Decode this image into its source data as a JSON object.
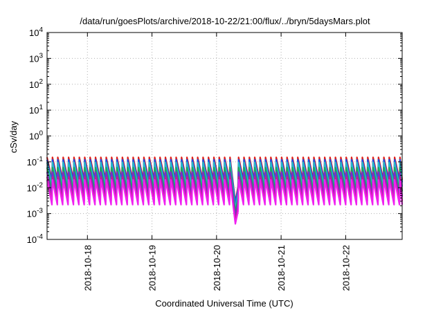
{
  "chart_data": {
    "type": "line",
    "title": "/data/run/goesPlots/archive/2018-10-22/21:00/flux/../bryn/5daysMars.plot",
    "xlabel": "Coordinated Universal Time (UTC)",
    "ylabel": "cSv/day",
    "xlim": [
      "2018-10-17 09:00",
      "2018-10-22 21:00"
    ],
    "x_ticks": [
      "2018-10-18",
      "2018-10-19",
      "2018-10-20",
      "2018-10-21",
      "2018-10-22"
    ],
    "yscale": "log",
    "ylim": [
      0.0001,
      10000
    ],
    "y_ticks": [
      {
        "value": 0.0001,
        "base": "10",
        "exp": "-4"
      },
      {
        "value": 0.001,
        "base": "10",
        "exp": "-3"
      },
      {
        "value": 0.01,
        "base": "10",
        "exp": "-2"
      },
      {
        "value": 0.1,
        "base": "10",
        "exp": "-1"
      },
      {
        "value": 1,
        "base": "10",
        "exp": "0"
      },
      {
        "value": 10,
        "base": "10",
        "exp": "1"
      },
      {
        "value": 100,
        "base": "10",
        "exp": "2"
      },
      {
        "value": 1000,
        "base": "10",
        "exp": "3"
      },
      {
        "value": 10000,
        "base": "10",
        "exp": "4"
      }
    ],
    "grid": true,
    "legend": "none",
    "sawtooth_period_hours": 2,
    "dip": {
      "start": "2018-10-20 05:00",
      "min": "2018-10-20 07:00",
      "end": "2018-10-20 08:00"
    },
    "series": [
      {
        "color": "#e0201a",
        "peak": 0.15,
        "trough": 0.02,
        "dip_min": 0.0028
      },
      {
        "color": "#1a4de6",
        "peak": 0.12,
        "trough": 0.016,
        "dip_min": 0.0025
      },
      {
        "color": "#2ab8c8",
        "peak": 0.095,
        "trough": 0.011,
        "dip_min": 0.0015
      },
      {
        "color": "#1fa85a",
        "peak": 0.06,
        "trough": 0.0072,
        "dip_min": 0.0011
      },
      {
        "color": "#7b2ad0",
        "peak": 0.04,
        "trough": 0.0045,
        "dip_min": 0.0008
      },
      {
        "color": "#c8208a",
        "peak": 0.026,
        "trough": 0.003,
        "dip_min": 0.0005
      },
      {
        "color": "#f020f0",
        "peak": 0.02,
        "trough": 0.0022,
        "dip_min": 0.0004
      }
    ]
  }
}
